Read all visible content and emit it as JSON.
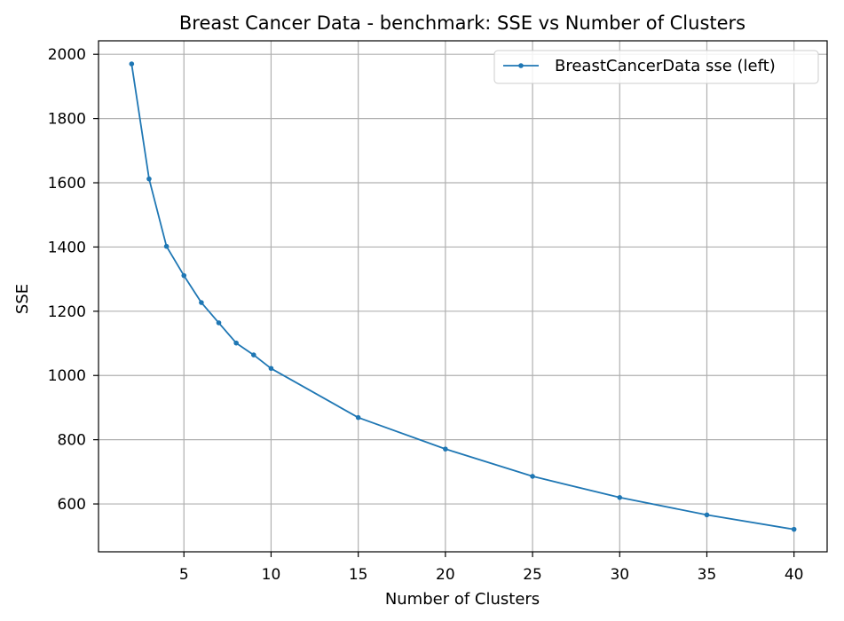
{
  "chart_data": {
    "type": "line",
    "title": "Breast Cancer Data - benchmark: SSE vs Number of Clusters",
    "xlabel": "Number of Clusters",
    "ylabel": "SSE",
    "xlim": [
      0.1,
      41.9
    ],
    "ylim": [
      451,
      2042
    ],
    "xticks": [
      5,
      10,
      15,
      20,
      25,
      30,
      35,
      40
    ],
    "yticks": [
      600,
      800,
      1000,
      1200,
      1400,
      1600,
      1800,
      2000
    ],
    "grid": true,
    "legend_position": "top-right",
    "series": [
      {
        "name": "BreastCancerData sse (left)",
        "color": "#1f77b4",
        "marker": "dot",
        "x": [
          2,
          3,
          4,
          5,
          6,
          7,
          8,
          9,
          10,
          15,
          20,
          25,
          30,
          35,
          40
        ],
        "y": [
          1970,
          1612,
          1402,
          1311,
          1227,
          1164,
          1101,
          1064,
          1022,
          869,
          771,
          686,
          620,
          566,
          521
        ]
      }
    ]
  }
}
